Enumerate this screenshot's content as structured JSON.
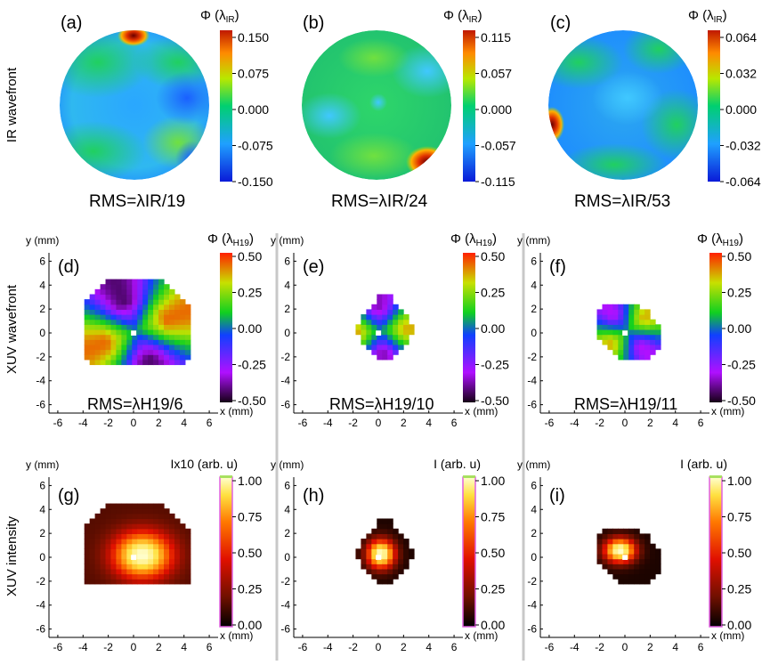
{
  "row_labels": [
    "IR wavefront",
    "XUV wavefront",
    "XUV intensity"
  ],
  "ir_panels": [
    {
      "label": "(a)",
      "rms": "RMS=λIR/19",
      "cb_title": "Φ (λIR)",
      "ticks": [
        "0.150",
        "0.075",
        "0.000",
        "-0.075",
        "-0.150"
      ]
    },
    {
      "label": "(b)",
      "rms": "RMS=λIR/24",
      "cb_title": "Φ (λIR)",
      "ticks": [
        "0.115",
        "0.057",
        "0.000",
        "-0.057",
        "-0.115"
      ]
    },
    {
      "label": "(c)",
      "rms": "RMS=λIR/53",
      "cb_title": "Φ (λIR)",
      "ticks": [
        "0.064",
        "0.032",
        "0.000",
        "-0.032",
        "-0.064"
      ]
    }
  ],
  "xuv_wavefront_panels": [
    {
      "label": "(d)",
      "rms": "RMS=λH19/6",
      "cb_title": "Φ (λH19)",
      "ticks": [
        "0.50",
        "0.25",
        "0.00",
        "-0.25",
        "-0.50"
      ]
    },
    {
      "label": "(e)",
      "rms": "RMS=λH19/10",
      "cb_title": "Φ (λH19)",
      "ticks": [
        "0.50",
        "0.25",
        "0.00",
        "-0.25",
        "-0.50"
      ]
    },
    {
      "label": "(f)",
      "rms": "RMS=λH19/11",
      "cb_title": "Φ (λH19)",
      "ticks": [
        "0.50",
        "0.25",
        "0.00",
        "-0.25",
        "-0.50"
      ]
    }
  ],
  "xuv_intensity_panels": [
    {
      "label": "(g)",
      "cb_title": "Ix10 (arb. u)",
      "ticks": [
        "1.00",
        "0.75",
        "0.50",
        "0.25",
        "0.00"
      ]
    },
    {
      "label": "(h)",
      "cb_title": "I (arb. u)",
      "ticks": [
        "1.00",
        "0.75",
        "0.50",
        "0.25",
        "0.00"
      ]
    },
    {
      "label": "(i)",
      "cb_title": "I (arb. u)",
      "ticks": [
        "1.00",
        "0.75",
        "0.50",
        "0.25",
        "0.00"
      ]
    }
  ],
  "axes": {
    "x_label": "x (mm)",
    "y_label": "y (mm)",
    "x_ticks": [
      -6,
      -4,
      -2,
      0,
      2,
      4,
      6
    ],
    "y_ticks": [
      6,
      4,
      2,
      0,
      -2,
      -4,
      -6
    ]
  },
  "colors": {
    "divider": "#c8c8c8",
    "ir_cmap": [
      "#0a1ad8",
      "#1fa0ff",
      "#00d070",
      "#b8e800",
      "#ff8a00",
      "#c01800"
    ],
    "phase_cmap": [
      "#150015",
      "#b010ff",
      "#1040ff",
      "#10d020",
      "#c8e000",
      "#ff2000"
    ],
    "intensity_cmap": [
      "#000000",
      "#701000",
      "#e01000",
      "#ff7800",
      "#ffe040",
      "#ffffd0"
    ]
  }
}
